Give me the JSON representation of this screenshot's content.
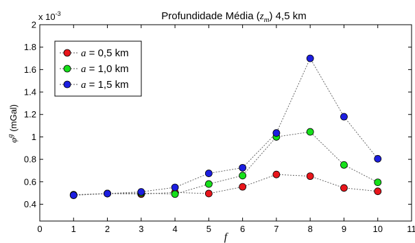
{
  "chart_data": {
    "type": "line",
    "title": "Profundidade Média (z_m) 4,5 km",
    "title_parts": {
      "prefix": "Profundidade Média (",
      "var": "z",
      "sub": "m",
      "suffix": ") 4,5 km"
    },
    "xlabel": "f",
    "ylabel": {
      "symbol": "φ",
      "sup": "g",
      "unit": " (mGal)"
    },
    "y_multiplier": {
      "base": "x 10",
      "exp": "-3"
    },
    "xlim": [
      0,
      11
    ],
    "ylim": [
      0.25,
      2.0
    ],
    "xticks": [
      "0",
      "1",
      "2",
      "3",
      "4",
      "5",
      "6",
      "7",
      "8",
      "9",
      "10",
      "11"
    ],
    "yticks": [
      "0.4",
      "0.6",
      "0.8",
      "1",
      "1.2",
      "1.4",
      "1.6",
      "1.8",
      "2"
    ],
    "grid": false,
    "legend_position": "top-left",
    "x": [
      1,
      2,
      3,
      4,
      5,
      6,
      7,
      8,
      9,
      10
    ],
    "series": [
      {
        "name": "a = 0,5 km",
        "legend_var": "a",
        "legend_rest": " = 0,5 km",
        "color": "#e8151b",
        "values": [
          0.48,
          0.495,
          0.49,
          0.505,
          0.495,
          0.555,
          0.665,
          0.65,
          0.545,
          0.515
        ]
      },
      {
        "name": "a = 1,0 km",
        "legend_var": "a",
        "legend_rest": " = 1,0 km",
        "color": "#16e01a",
        "values": [
          0.485,
          0.495,
          0.5,
          0.49,
          0.58,
          0.655,
          1.0,
          1.045,
          0.75,
          0.595
        ]
      },
      {
        "name": "a = 1,5 km",
        "legend_var": "a",
        "legend_rest": " = 1,5 km",
        "color": "#1c1ee0",
        "values": [
          0.48,
          0.495,
          0.51,
          0.55,
          0.675,
          0.725,
          1.035,
          1.7,
          1.18,
          0.805
        ]
      }
    ]
  }
}
